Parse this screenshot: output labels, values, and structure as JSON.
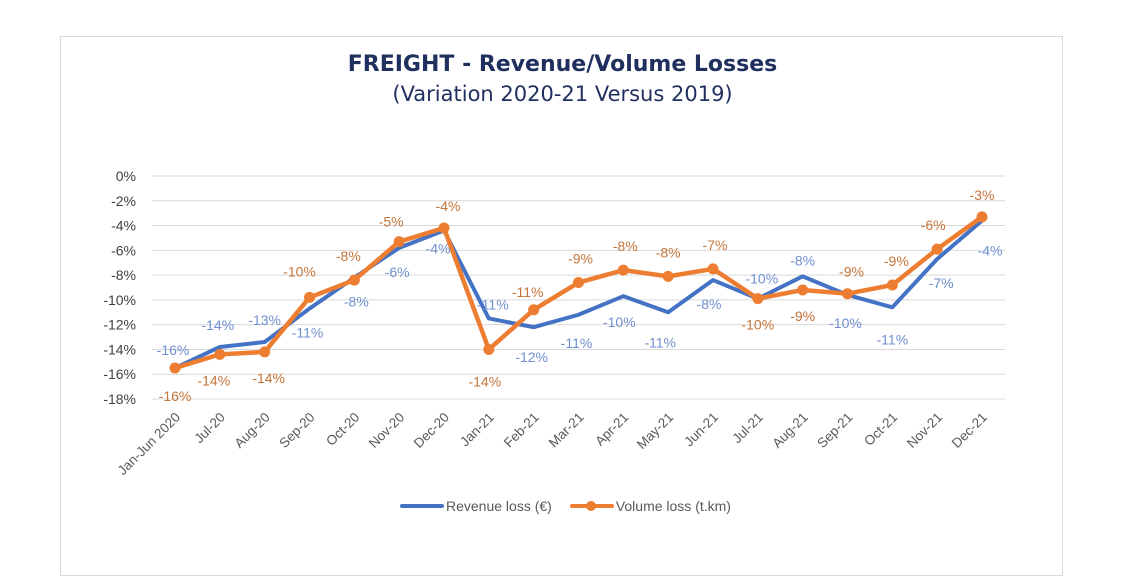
{
  "chart_data": {
    "type": "line",
    "title": "FREIGHT - Revenue/Volume Losses",
    "subtitle": "(Variation 2020-21 Versus 2019)",
    "xlabel": "",
    "ylabel": "",
    "ylim": [
      -18,
      0
    ],
    "yticks": [
      0,
      -2,
      -4,
      -6,
      -8,
      -10,
      -12,
      -14,
      -16,
      -18
    ],
    "ytick_labels": [
      "0%",
      "-2%",
      "-4%",
      "-6%",
      "-8%",
      "-10%",
      "-12%",
      "-14%",
      "-16%",
      "-18%"
    ],
    "grid": true,
    "legend_position": "bottom",
    "categories": [
      "Jan-Jun 2020",
      "Jul-20",
      "Aug-20",
      "Sep-20",
      "Oct-20",
      "Nov-20",
      "Dec-20",
      "Jan-21",
      "Feb-21",
      "Mar-21",
      "Apr-21",
      "May-21",
      "Jun-21",
      "Jul-21",
      "Aug-21",
      "Sep-21",
      "Oct-21",
      "Nov-21",
      "Dec-21"
    ],
    "series": [
      {
        "name": "Revenue loss (€)",
        "color": "#4472c4",
        "label_color": "#6f8fd0",
        "markers": false,
        "values": [
          -15.5,
          -13.8,
          -13.4,
          -10.7,
          -8.2,
          -5.8,
          -4.4,
          -11.5,
          -12.2,
          -11.2,
          -9.7,
          -11.0,
          -8.4,
          -9.9,
          -8.1,
          -9.6,
          -10.6,
          -6.7,
          -3.6
        ],
        "data_labels": [
          "-16%",
          "-14%",
          "-13%",
          "-11%",
          "-8%",
          "-6%",
          "-4%",
          "-11%",
          "-12%",
          "-11%",
          "-10%",
          "-11%",
          "-8%",
          "-10%",
          "-8%",
          "-10%",
          "-11%",
          "-7%",
          "-4%"
        ]
      },
      {
        "name": "Volume loss (t.km)",
        "color": "#ed7d31",
        "label_color": "#c5743a",
        "markers": true,
        "values": [
          -15.5,
          -14.4,
          -14.2,
          -9.8,
          -8.4,
          -5.3,
          -4.2,
          -14.0,
          -10.8,
          -8.6,
          -7.6,
          -8.1,
          -7.5,
          -9.9,
          -9.2,
          -9.5,
          -8.8,
          -5.9,
          -3.3
        ],
        "data_labels": [
          "-16%",
          "-14%",
          "-14%",
          "-10%",
          "-8%",
          "-5%",
          "-4%",
          "-14%",
          "-11%",
          "-9%",
          "-8%",
          "-8%",
          "-7%",
          "-10%",
          "-9%",
          "-9%",
          "-9%",
          "-6%",
          "-3%"
        ]
      }
    ]
  }
}
